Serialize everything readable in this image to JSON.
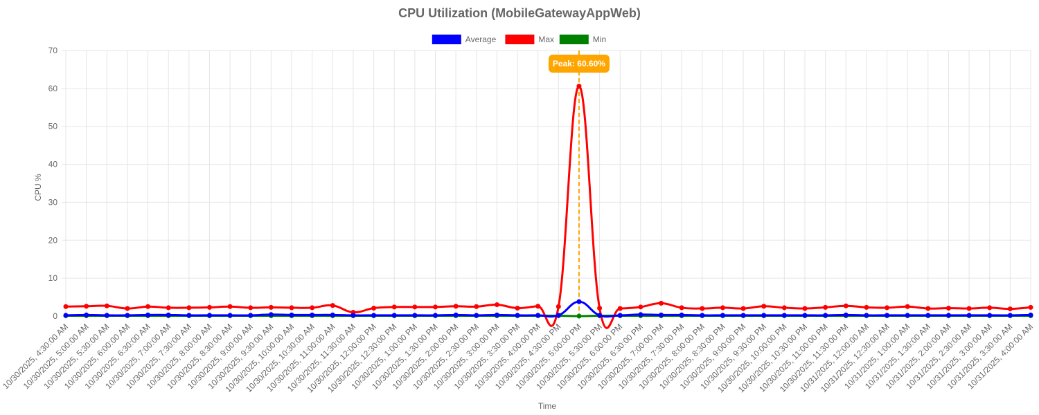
{
  "chart_data": {
    "type": "line",
    "title": "CPU Utilization (MobileGatewayAppWeb)",
    "xlabel": "Time",
    "ylabel": "CPU %",
    "ylim": [
      0,
      70
    ],
    "yticks": [
      0,
      10,
      20,
      30,
      40,
      50,
      60,
      70
    ],
    "grid": true,
    "legend_position": "top",
    "categories": [
      "10/30/2025, 4:30:00 AM",
      "10/30/2025, 5:00:00 AM",
      "10/30/2025, 5:30:00 AM",
      "10/30/2025, 6:00:00 AM",
      "10/30/2025, 6:30:00 AM",
      "10/30/2025, 7:00:00 AM",
      "10/30/2025, 7:30:00 AM",
      "10/30/2025, 8:00:00 AM",
      "10/30/2025, 8:30:00 AM",
      "10/30/2025, 9:00:00 AM",
      "10/30/2025, 9:30:00 AM",
      "10/30/2025, 10:00:00 AM",
      "10/30/2025, 10:30:00 AM",
      "10/30/2025, 11:00:00 AM",
      "10/30/2025, 11:30:00 AM",
      "10/30/2025, 12:00:00 PM",
      "10/30/2025, 12:30:00 PM",
      "10/30/2025, 1:00:00 PM",
      "10/30/2025, 1:30:00 PM",
      "10/30/2025, 2:00:00 PM",
      "10/30/2025, 2:30:00 PM",
      "10/30/2025, 3:00:00 PM",
      "10/30/2025, 3:30:00 PM",
      "10/30/2025, 4:00:00 PM",
      "10/30/2025, 4:30:00 PM",
      "10/30/2025, 5:00:00 PM",
      "10/30/2025, 5:30:00 PM",
      "10/30/2025, 6:00:00 PM",
      "10/30/2025, 6:30:00 PM",
      "10/30/2025, 7:00:00 PM",
      "10/30/2025, 7:30:00 PM",
      "10/30/2025, 8:00:00 PM",
      "10/30/2025, 8:30:00 PM",
      "10/30/2025, 9:00:00 PM",
      "10/30/2025, 9:30:00 PM",
      "10/30/2025, 10:00:00 PM",
      "10/30/2025, 10:30:00 PM",
      "10/30/2025, 11:00:00 PM",
      "10/30/2025, 11:30:00 PM",
      "10/31/2025, 12:00:00 AM",
      "10/31/2025, 12:30:00 AM",
      "10/31/2025, 1:00:00 AM",
      "10/31/2025, 1:30:00 AM",
      "10/31/2025, 2:00:00 AM",
      "10/31/2025, 2:30:00 AM",
      "10/31/2025, 3:00:00 AM",
      "10/31/2025, 3:30:00 AM",
      "10/31/2025, 4:00:00 AM"
    ],
    "series": [
      {
        "name": "Average",
        "color": "#0000ff",
        "values": [
          0.2,
          0.3,
          0.2,
          0.2,
          0.3,
          0.3,
          0.2,
          0.2,
          0.2,
          0.2,
          0.4,
          0.3,
          0.3,
          0.3,
          0.2,
          0.2,
          0.2,
          0.2,
          0.2,
          0.3,
          0.2,
          0.3,
          0.2,
          0.2,
          0.2,
          3.8,
          0.2,
          0.2,
          0.4,
          0.3,
          0.3,
          0.2,
          0.2,
          0.2,
          0.2,
          0.2,
          0.2,
          0.2,
          0.3,
          0.2,
          0.2,
          0.2,
          0.2,
          0.2,
          0.2,
          0.2,
          0.2,
          0.3
        ]
      },
      {
        "name": "Max",
        "color": "#ff0000",
        "values": [
          2.5,
          2.6,
          2.7,
          2.0,
          2.5,
          2.2,
          2.2,
          2.3,
          2.5,
          2.2,
          2.3,
          2.2,
          2.2,
          2.8,
          1.0,
          2.1,
          2.4,
          2.4,
          2.4,
          2.6,
          2.5,
          3.0,
          2.1,
          2.6,
          2.5,
          60.6,
          2.1,
          2.0,
          2.4,
          3.4,
          2.2,
          2.0,
          2.2,
          2.0,
          2.6,
          2.2,
          2.0,
          2.3,
          2.7,
          2.3,
          2.2,
          2.5,
          2.0,
          2.1,
          2.0,
          2.2,
          1.9,
          2.3
        ]
      },
      {
        "name": "Min",
        "color": "#008000",
        "values": [
          0.1,
          0.1,
          0.1,
          0.1,
          0.1,
          0.1,
          0.1,
          0.1,
          0.1,
          0.1,
          0.1,
          0.1,
          0.1,
          0.1,
          0.1,
          0.1,
          0.1,
          0.1,
          0.1,
          0.1,
          0.1,
          0.1,
          0.1,
          0.1,
          0.1,
          0.0,
          0.1,
          0.1,
          0.1,
          0.1,
          0.1,
          0.1,
          0.1,
          0.1,
          0.1,
          0.1,
          0.1,
          0.1,
          0.1,
          0.1,
          0.1,
          0.1,
          0.1,
          0.1,
          0.1,
          0.1,
          0.1,
          0.1
        ]
      }
    ],
    "annotations": [
      {
        "label": "Peak: 60.60%",
        "category_index": 25,
        "value": 60.6,
        "color": "#ffa500"
      }
    ]
  }
}
